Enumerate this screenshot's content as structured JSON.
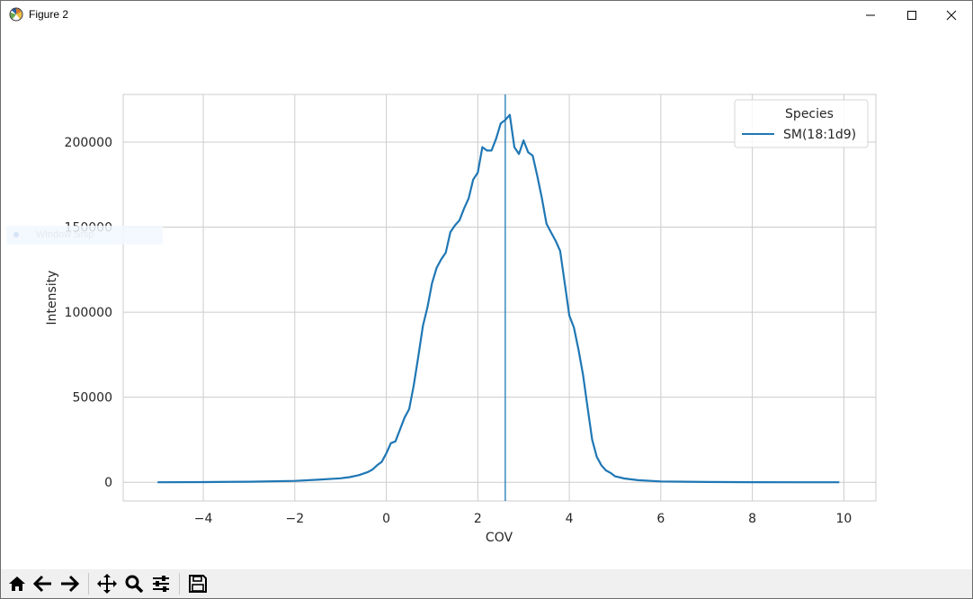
{
  "window": {
    "title": "Figure 2",
    "controls": [
      "minimize",
      "maximize",
      "close"
    ]
  },
  "overlay": {
    "label": "Window Snip"
  },
  "toolbar": {
    "buttons": [
      "home-icon",
      "back-icon",
      "forward-icon",
      "pan-icon",
      "zoom-icon",
      "configure-subplots-icon",
      "save-icon"
    ]
  },
  "chart_data": {
    "type": "line",
    "title": "",
    "xlabel": "COV",
    "ylabel": "Intensity",
    "xlim": [
      -5.75,
      10.7
    ],
    "ylim": [
      -11000,
      228000
    ],
    "xticks": [
      -4,
      -2,
      0,
      2,
      4,
      6,
      8,
      10
    ],
    "xtick_labels": [
      "−4",
      "−2",
      "0",
      "2",
      "4",
      "6",
      "8",
      "10"
    ],
    "yticks": [
      0,
      50000,
      100000,
      150000,
      200000
    ],
    "ytick_labels": [
      "0",
      "50000",
      "100000",
      "150000",
      "200000"
    ],
    "grid": true,
    "legend": {
      "title": "Species",
      "placement": "top-right"
    },
    "vline": {
      "x": 2.6,
      "color": "#1f77b4"
    },
    "series": [
      {
        "name": "SM(18:1d9)",
        "color": "#1f77b4",
        "x": [
          -5,
          -4,
          -3,
          -2,
          -1.5,
          -1,
          -0.8,
          -0.6,
          -0.4,
          -0.3,
          -0.2,
          -0.1,
          0,
          0.1,
          0.2,
          0.3,
          0.4,
          0.5,
          0.6,
          0.7,
          0.8,
          0.9,
          1.0,
          1.1,
          1.2,
          1.3,
          1.4,
          1.5,
          1.6,
          1.7,
          1.8,
          1.9,
          2.0,
          2.1,
          2.2,
          2.3,
          2.4,
          2.5,
          2.6,
          2.7,
          2.8,
          2.9,
          3.0,
          3.1,
          3.2,
          3.3,
          3.4,
          3.5,
          3.6,
          3.7,
          3.8,
          3.9,
          4.0,
          4.1,
          4.2,
          4.3,
          4.4,
          4.5,
          4.6,
          4.7,
          4.8,
          4.9,
          5.0,
          5.2,
          5.5,
          6.0,
          7.0,
          8.0,
          9.0,
          9.9
        ],
        "values": [
          0,
          100,
          300,
          800,
          1500,
          2300,
          3000,
          4200,
          6000,
          7500,
          10000,
          12000,
          17000,
          23000,
          24000,
          31000,
          38000,
          43000,
          57000,
          74000,
          92000,
          103000,
          117000,
          126000,
          131000,
          135000,
          147000,
          151000,
          154000,
          161000,
          167000,
          178000,
          182000,
          197000,
          195000,
          195000,
          202000,
          211000,
          213000,
          216000,
          197000,
          193000,
          201000,
          194000,
          192000,
          180000,
          167000,
          152000,
          147000,
          142000,
          136000,
          117000,
          98000,
          91000,
          78000,
          63000,
          44000,
          25000,
          15000,
          10000,
          7000,
          5500,
          3500,
          2200,
          1200,
          500,
          150,
          50,
          0,
          0
        ]
      }
    ]
  }
}
